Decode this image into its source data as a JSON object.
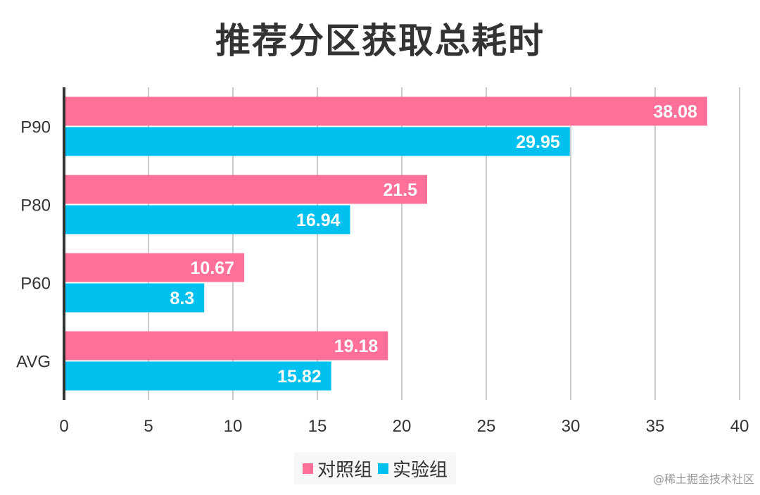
{
  "chart_data": {
    "type": "bar",
    "orientation": "horizontal",
    "title": "推荐分区获取总耗时",
    "categories": [
      "P90",
      "P80",
      "P60",
      "AVG"
    ],
    "series": [
      {
        "name": "对照组",
        "color": "#ff7099",
        "values": [
          38.08,
          21.5,
          10.67,
          19.18
        ]
      },
      {
        "name": "实验组",
        "color": "#00c0f0",
        "values": [
          29.95,
          16.94,
          8.3,
          15.82
        ]
      }
    ],
    "xlim": [
      0,
      40
    ],
    "xticks": [
      0,
      5,
      10,
      15,
      20,
      25,
      30,
      35,
      40
    ],
    "grid": true,
    "legend": "bottom"
  },
  "watermark": "@稀土掘金技术社区"
}
